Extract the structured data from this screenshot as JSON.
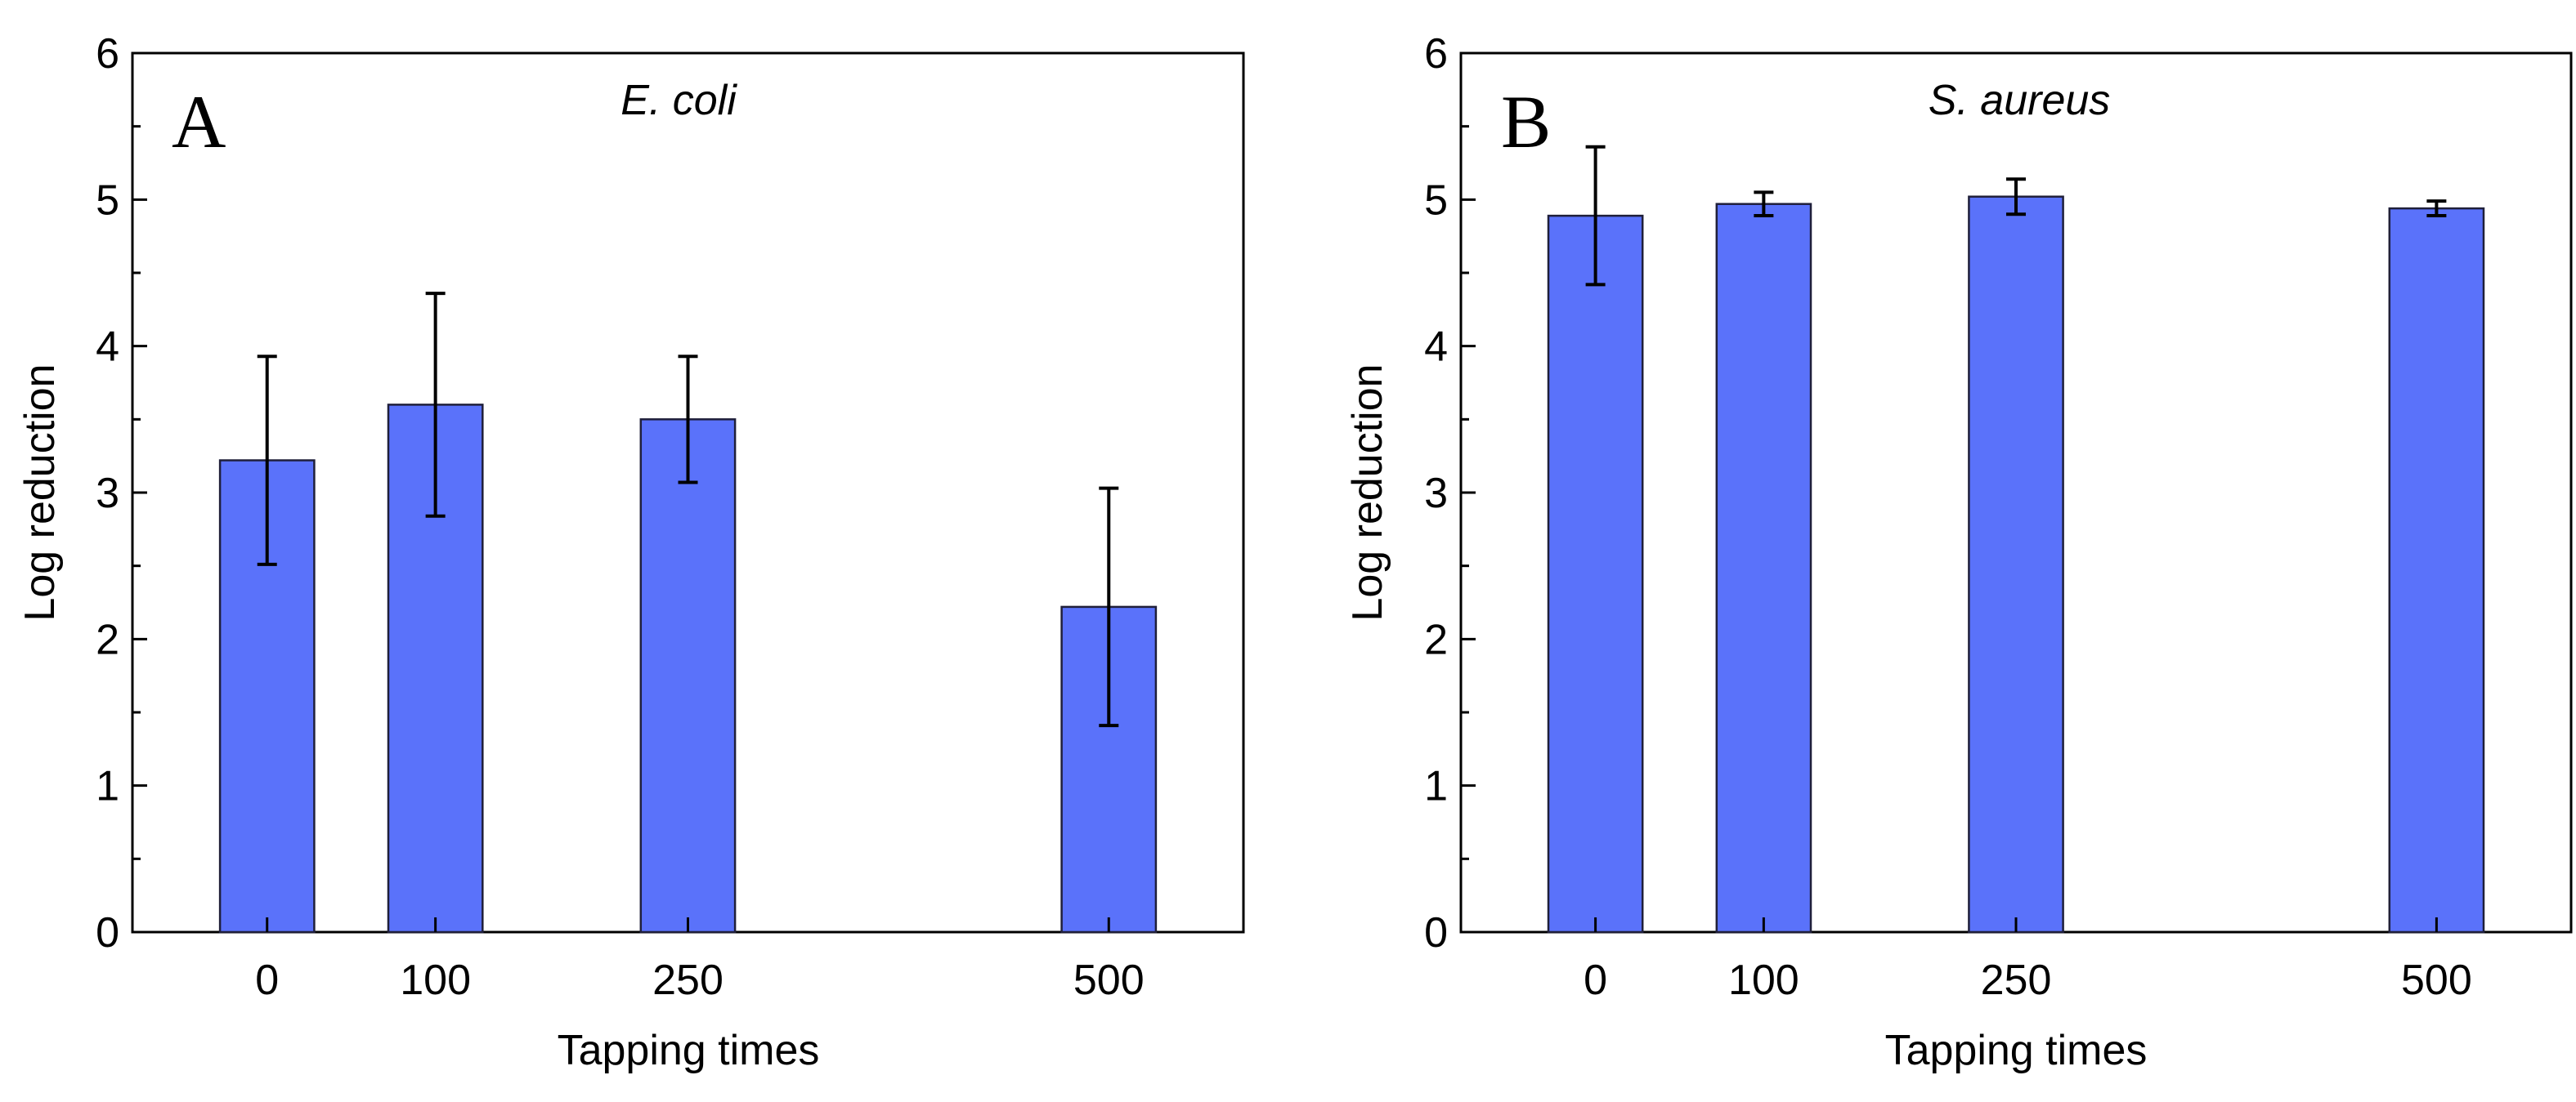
{
  "colors": {
    "bar": "#5a72fa",
    "axis": "#000000",
    "background": "#ffffff"
  },
  "chart_data": [
    {
      "type": "bar",
      "panel_letter": "A",
      "title": "E. coli",
      "xlabel": "Tapping times",
      "ylabel": "Log reduction",
      "categories": [
        "0",
        "100",
        "250",
        "500"
      ],
      "x_positions": [
        0,
        100,
        250,
        500
      ],
      "xlim": [
        -80,
        580
      ],
      "values": [
        3.22,
        3.6,
        3.5,
        2.22
      ],
      "errors": [
        0.71,
        0.76,
        0.43,
        0.81
      ],
      "ylim": [
        0,
        6
      ],
      "yticks": [
        "0",
        "1",
        "2",
        "3",
        "4",
        "5",
        "6"
      ],
      "grid": false
    },
    {
      "type": "bar",
      "panel_letter": "B",
      "title": "S. aureus",
      "xlabel": "Tapping times",
      "ylabel": "Log reduction",
      "categories": [
        "0",
        "100",
        "250",
        "500"
      ],
      "x_positions": [
        0,
        100,
        250,
        500
      ],
      "xlim": [
        -80,
        580
      ],
      "values": [
        4.89,
        4.97,
        5.02,
        4.94
      ],
      "errors": [
        0.47,
        0.08,
        0.12,
        0.05
      ],
      "ylim": [
        0,
        6
      ],
      "yticks": [
        "0",
        "1",
        "2",
        "3",
        "4",
        "5",
        "6"
      ],
      "grid": false
    }
  ]
}
